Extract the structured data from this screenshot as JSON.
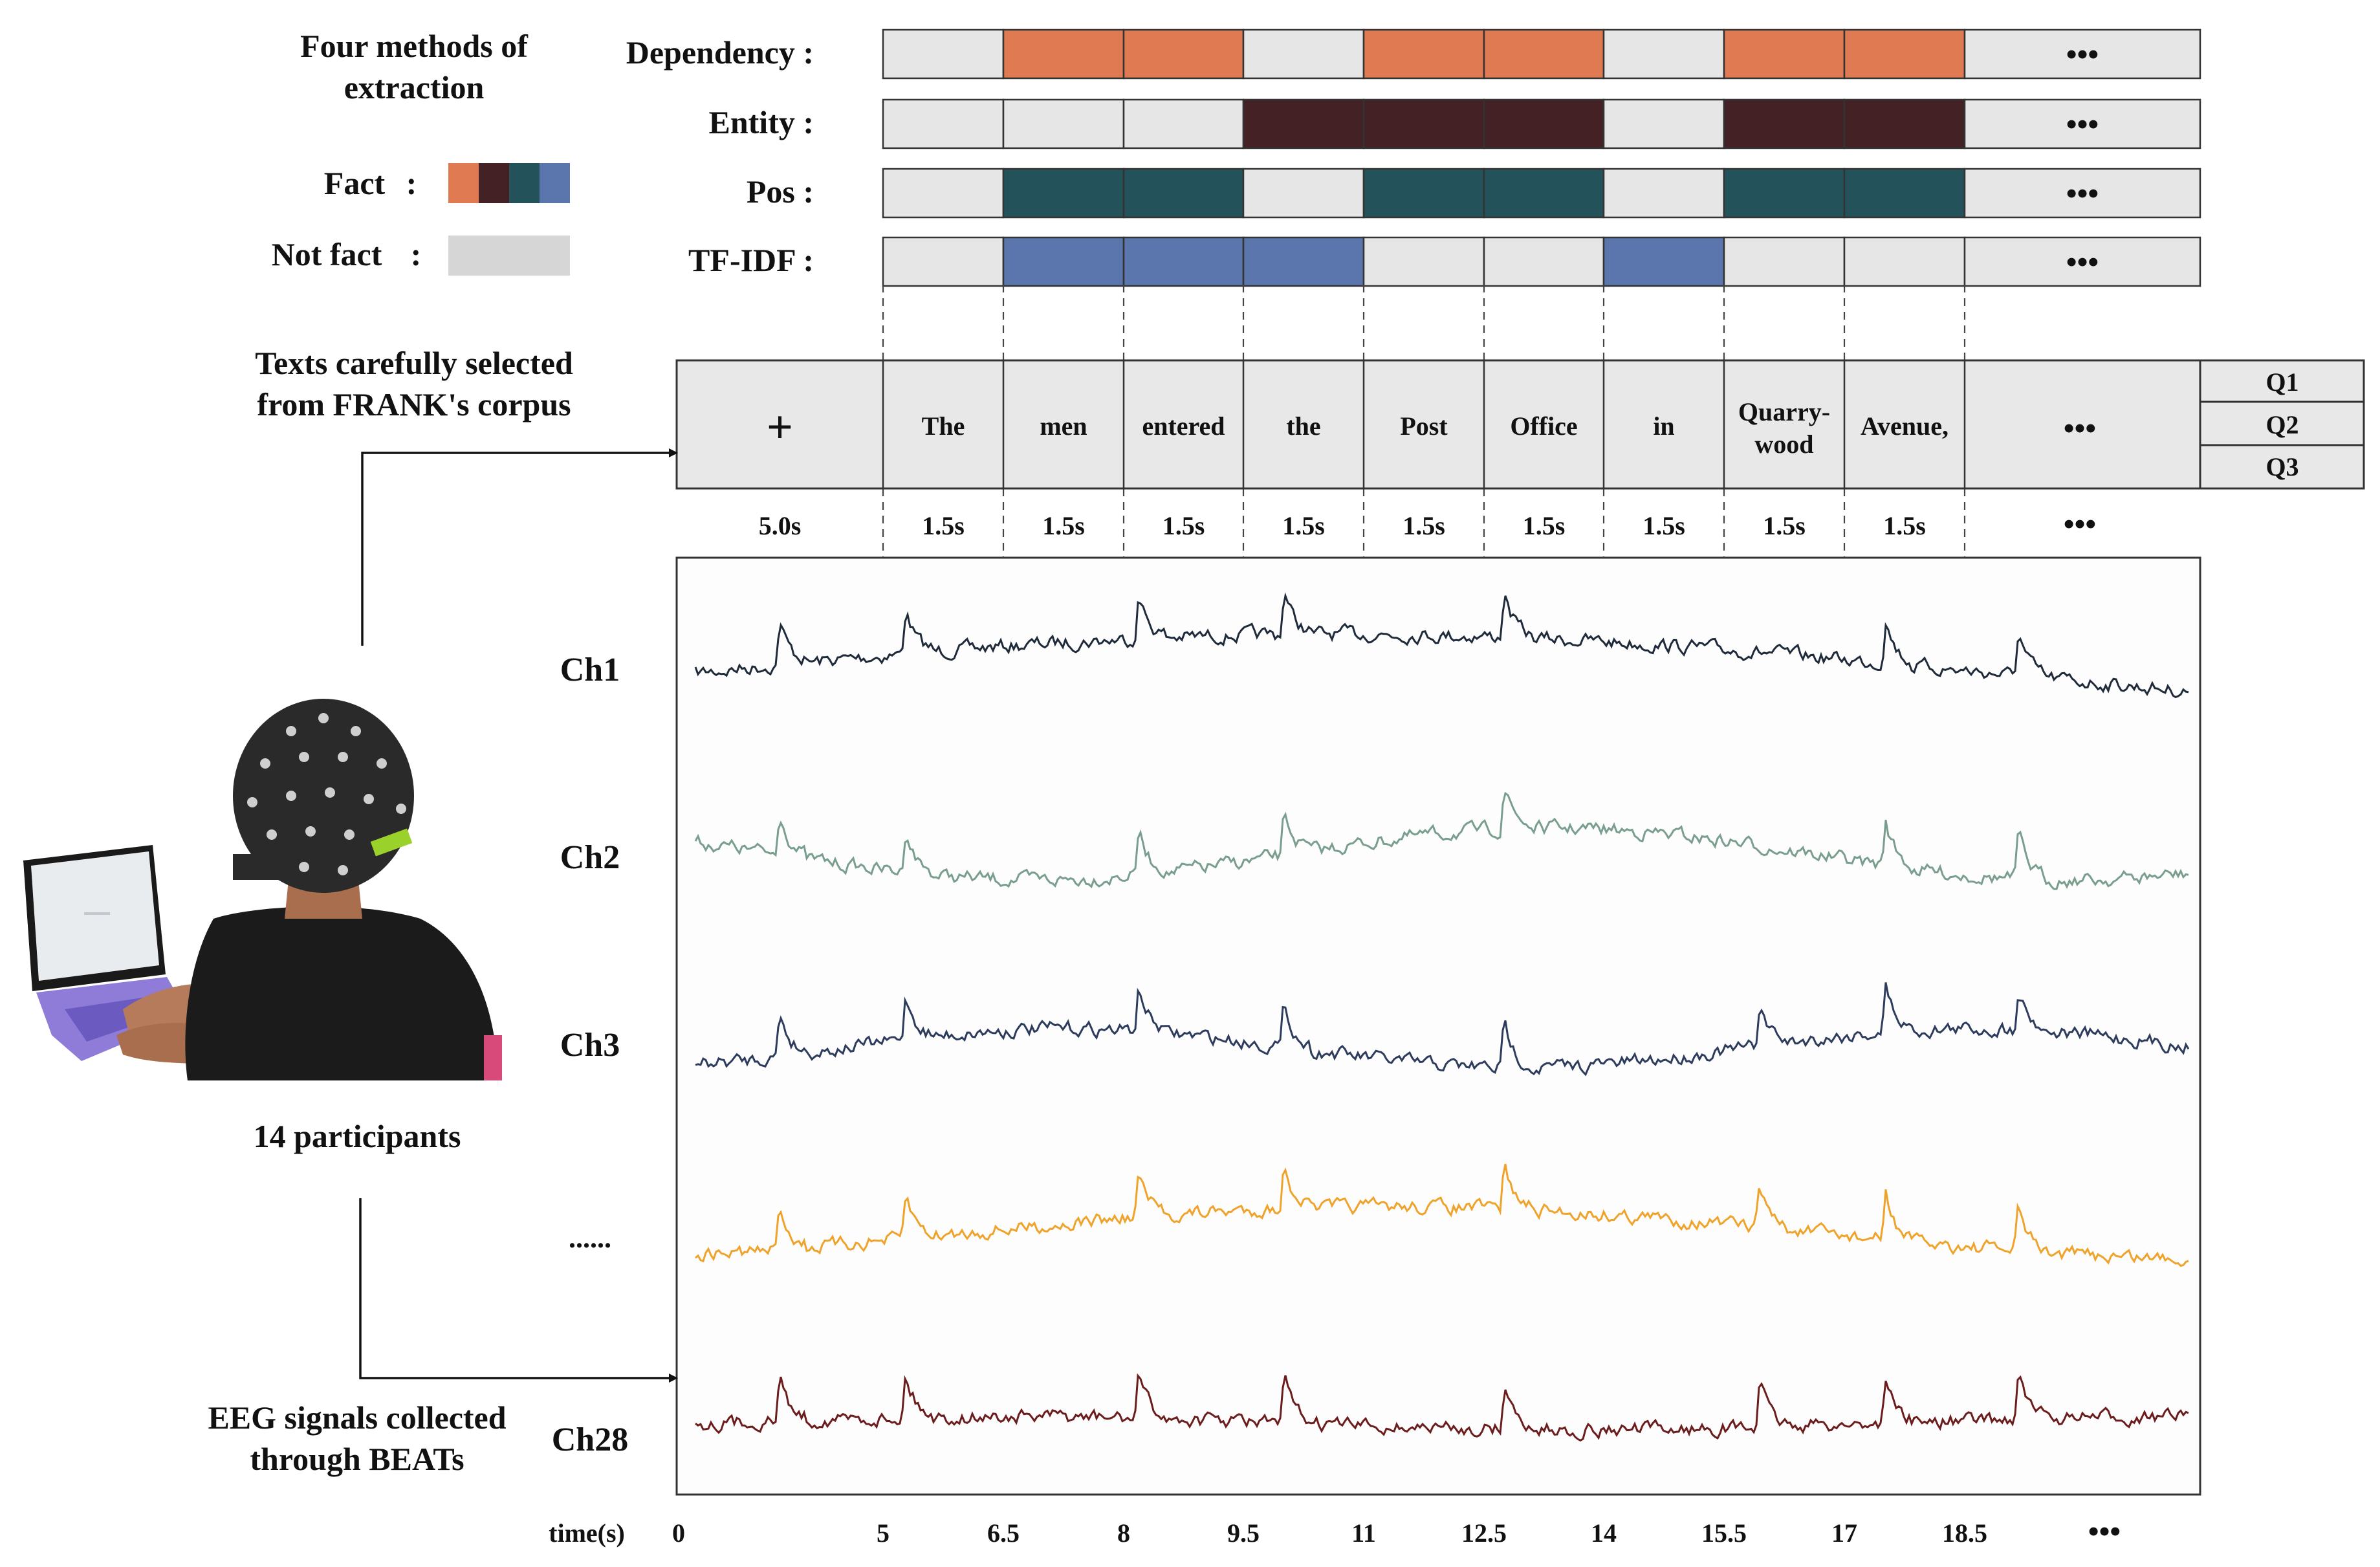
{
  "legend": {
    "title": "Four methods of extraction",
    "title_lines": [
      "Four methods of",
      "extraction"
    ],
    "fact_label": "Fact",
    "not_fact_label": "Not fact",
    "colon": ":"
  },
  "colors": {
    "dependency": "#e07a52",
    "entity": "#442124",
    "pos": "#23525a",
    "tfidf": "#5b75ad",
    "not_fact": "#e6e6e6",
    "ch1": "#1f2a3a",
    "ch2": "#7a9e8e",
    "ch3": "#2d3b5c",
    "ch_dots": "#efa32a",
    "ch28": "#6b1c1c"
  },
  "methods": [
    {
      "label": "Dependency :",
      "color_key": "dependency",
      "cells": [
        0,
        1,
        1,
        0,
        1,
        1,
        0,
        1,
        1
      ]
    },
    {
      "label": "Entity :",
      "color_key": "entity",
      "cells": [
        0,
        0,
        0,
        1,
        1,
        1,
        0,
        1,
        1
      ]
    },
    {
      "label": "Pos :",
      "color_key": "pos",
      "cells": [
        0,
        1,
        1,
        0,
        1,
        1,
        0,
        1,
        1
      ]
    },
    {
      "label": "TF-IDF :",
      "color_key": "tfidf",
      "cells": [
        0,
        1,
        1,
        1,
        0,
        0,
        1,
        0,
        0
      ]
    }
  ],
  "ellipsis": "•••",
  "text_block_caption": [
    "Texts carefully selected",
    "from FRANK's corpus"
  ],
  "words": [
    {
      "text": "+",
      "duration": "5.0s"
    },
    {
      "text": "The",
      "duration": "1.5s"
    },
    {
      "text": "men",
      "duration": "1.5s"
    },
    {
      "text": "entered",
      "duration": "1.5s"
    },
    {
      "text": "the",
      "duration": "1.5s"
    },
    {
      "text": "Post",
      "duration": "1.5s"
    },
    {
      "text": "Office",
      "duration": "1.5s"
    },
    {
      "text": "in",
      "duration": "1.5s"
    },
    {
      "text": "Quarry-\nwood",
      "duration": "1.5s"
    },
    {
      "text": "Avenue,",
      "duration": "1.5s"
    }
  ],
  "questions": [
    "Q1",
    "Q2",
    "Q3"
  ],
  "participants_label": "14 participants",
  "eeg_caption": [
    "EEG signals collected",
    "through BEATs"
  ],
  "channels": [
    {
      "label": "Ch1",
      "color_key": "ch1"
    },
    {
      "label": "Ch2",
      "color_key": "ch2"
    },
    {
      "label": "Ch3",
      "color_key": "ch3"
    },
    {
      "label": "......",
      "color_key": "ch_dots"
    },
    {
      "label": "Ch28",
      "color_key": "ch28"
    }
  ],
  "time_axis": {
    "label": "time(s)",
    "ticks": [
      "0",
      "5",
      "6.5",
      "8",
      "9.5",
      "11",
      "12.5",
      "14",
      "15.5",
      "17",
      "18.5"
    ],
    "ellipsis": "•••"
  }
}
